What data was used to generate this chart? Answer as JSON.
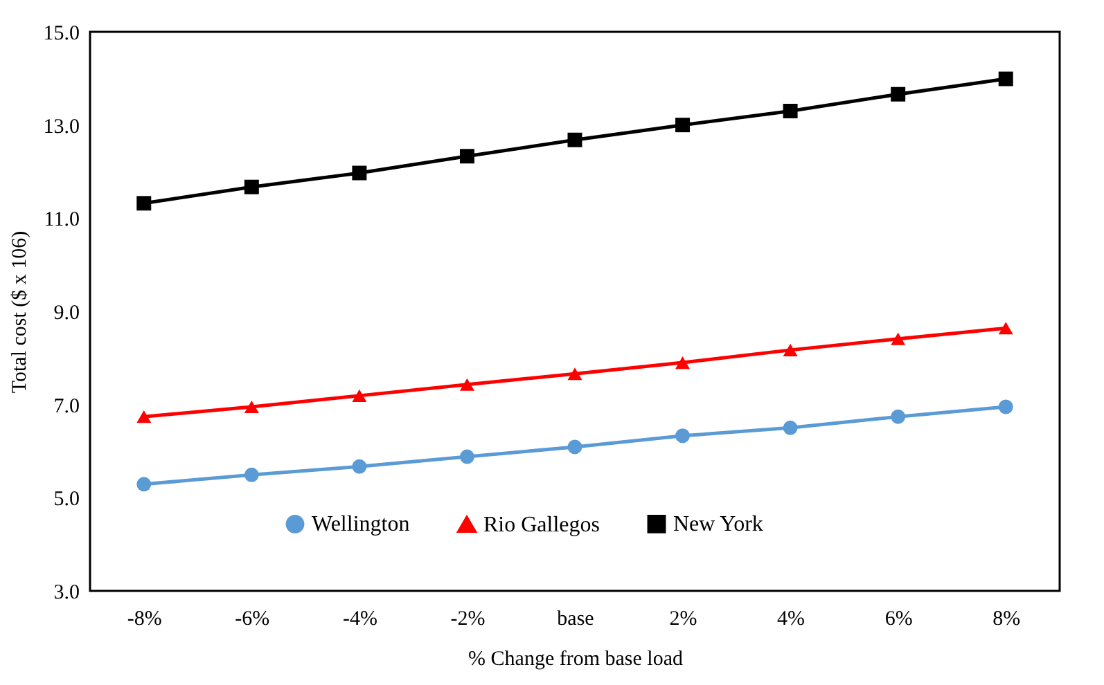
{
  "chart_data": {
    "type": "line",
    "xlabel": "% Change from base load",
    "ylabel": "Total cost ($ x 106)",
    "categories": [
      "-8%",
      "-6%",
      "-4%",
      "-2%",
      "base",
      "2%",
      "4%",
      "6%",
      "8%"
    ],
    "series": [
      {
        "name": "Wellington",
        "color": "#5b9bd5",
        "marker": "circle",
        "values": [
          5.29,
          5.49,
          5.67,
          5.88,
          6.09,
          6.33,
          6.5,
          6.74,
          6.95
        ]
      },
      {
        "name": "Rio Gallegos",
        "color": "#ff0000",
        "marker": "triangle",
        "values": [
          6.74,
          6.95,
          7.19,
          7.43,
          7.66,
          7.9,
          8.17,
          8.41,
          8.64
        ]
      },
      {
        "name": "New York",
        "color": "#000000",
        "marker": "square",
        "values": [
          11.32,
          11.67,
          11.97,
          12.33,
          12.68,
          13.0,
          13.3,
          13.66,
          13.99
        ]
      }
    ],
    "ylim": [
      3.0,
      15.0
    ],
    "yticks": [
      {
        "value": 3,
        "label": "3.0"
      },
      {
        "value": 5,
        "label": "5.0"
      },
      {
        "value": 7,
        "label": "7.0"
      },
      {
        "value": 9,
        "label": "9.0"
      },
      {
        "value": 11,
        "label": "11.0"
      },
      {
        "value": 13,
        "label": "13.0"
      },
      {
        "value": 15,
        "label": "15.0"
      }
    ],
    "grid": false,
    "legend": "bottom",
    "line_style": "solid"
  }
}
